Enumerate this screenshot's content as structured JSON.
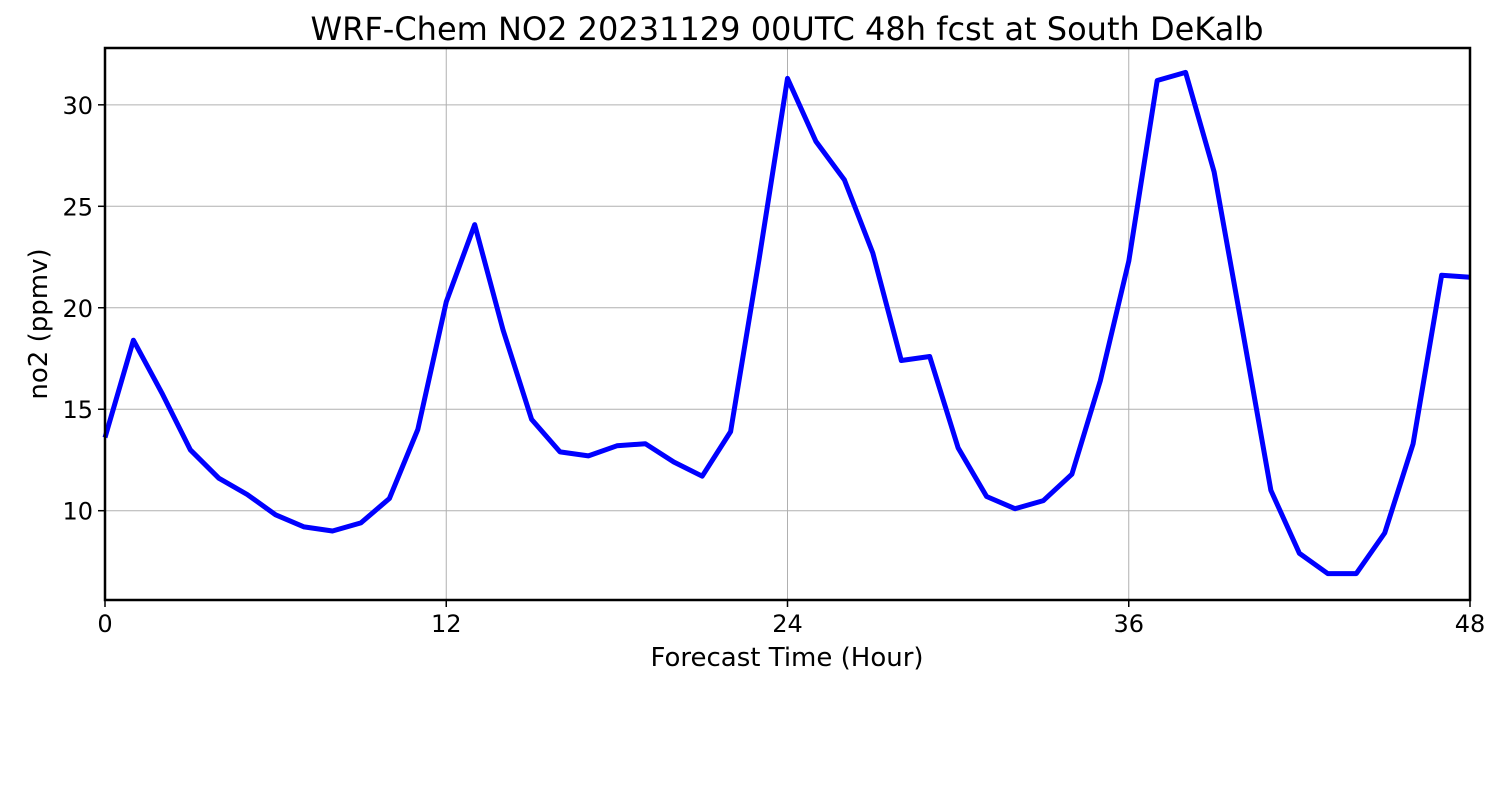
{
  "chart_data": {
    "type": "line",
    "title": "WRF-Chem NO2  20231129 00UTC 48h fcst at South DeKalb",
    "xlabel": "Forecast Time (Hour)",
    "ylabel": "no2  (ppmv)",
    "xlim": [
      0,
      48
    ],
    "ylim": [
      5.6,
      32.8
    ],
    "xticks": [
      0,
      12,
      24,
      36,
      48
    ],
    "yticks": [
      10,
      15,
      20,
      25,
      30
    ],
    "grid": true,
    "series_color": "#0000ff",
    "x": [
      0,
      1,
      2,
      3,
      4,
      5,
      6,
      7,
      8,
      9,
      10,
      11,
      12,
      13,
      14,
      15,
      16,
      17,
      18,
      19,
      20,
      21,
      22,
      23,
      24,
      25,
      26,
      27,
      28,
      29,
      30,
      31,
      32,
      33,
      34,
      35,
      36,
      37,
      38,
      39,
      40,
      41,
      42,
      43,
      44,
      45,
      46,
      47,
      48
    ],
    "series": [
      {
        "values": [
          13.6,
          18.4,
          15.8,
          13.0,
          11.6,
          10.8,
          9.8,
          9.2,
          9.0,
          9.4,
          10.6,
          14.0,
          20.3,
          24.1,
          18.9,
          14.5,
          12.9,
          12.7,
          13.2,
          13.3,
          12.4,
          11.7,
          13.9,
          22.4,
          31.3,
          28.2,
          26.3,
          22.7,
          17.4,
          17.6,
          13.1,
          10.7,
          10.1,
          10.5,
          11.8,
          16.4,
          22.3,
          31.2,
          31.6,
          26.7,
          18.9,
          11.0,
          7.9,
          6.9,
          6.9,
          8.9,
          13.3,
          21.6,
          21.5
        ]
      }
    ]
  }
}
